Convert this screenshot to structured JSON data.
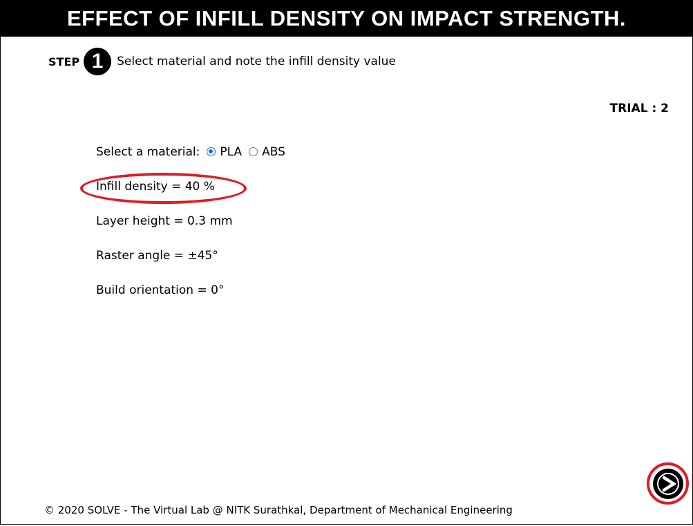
{
  "header": {
    "title": "EFFECT OF INFILL DENSITY ON IMPACT STRENGTH."
  },
  "step": {
    "label": "STEP",
    "number": "1",
    "instruction": "Select material and note the infill density value"
  },
  "trial": {
    "text": "TRIAL : 2"
  },
  "material": {
    "label": "Select a material:",
    "options": [
      "PLA",
      "ABS"
    ],
    "selected": "PLA"
  },
  "parameters": {
    "infill_density": "Infill density = 40 %",
    "layer_height": "Layer height = 0.3 mm",
    "raster_angle": "Raster angle = ±45°",
    "build_orientation": "Build orientation = 0°"
  },
  "footer": {
    "copyright": "© 2020 SOLVE - The Virtual Lab @ NITK Surathkal, Department of Mechanical Engineering"
  },
  "colors": {
    "highlight": "#e21b24",
    "radio_accent": "#0075ff",
    "header_bg": "#000000"
  },
  "icons": {
    "next": "next-arrow-icon"
  }
}
